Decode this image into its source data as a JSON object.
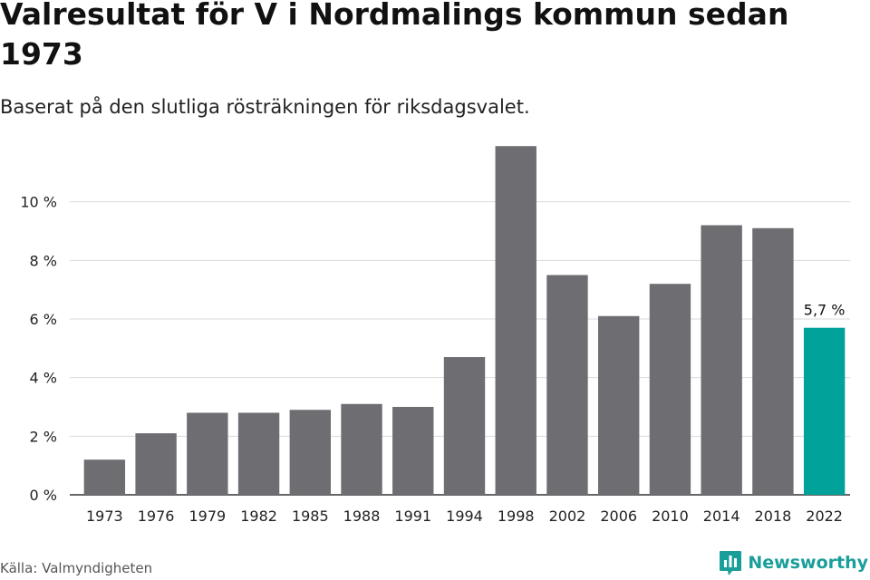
{
  "title": "Valresultat för V i Nordmalings kommun sedan 1973",
  "subtitle": "Baserat på den slutliga rösträkningen för riksdagsvalet.",
  "source": "Källa: Valmyndigheten",
  "brand": {
    "name": "Newsworthy",
    "logo_icon": "bar-chart-logo-icon",
    "color": "#1a9e9a"
  },
  "colors": {
    "bar": "#6e6d72",
    "highlight": "#00a29a",
    "grid": "#d9d9d9",
    "axis": "#333333"
  },
  "chart_data": {
    "type": "bar",
    "categories": [
      "1973",
      "1976",
      "1979",
      "1982",
      "1985",
      "1988",
      "1991",
      "1994",
      "1998",
      "2002",
      "2006",
      "2010",
      "2014",
      "2018",
      "2022"
    ],
    "values": [
      1.2,
      2.1,
      2.8,
      2.8,
      2.9,
      3.1,
      3.0,
      4.7,
      11.9,
      7.5,
      6.1,
      7.2,
      9.2,
      9.1,
      5.7
    ],
    "highlight_index": 14,
    "data_labels": [
      {
        "index": 14,
        "text": "5,7 %"
      }
    ],
    "y_ticks": [
      0,
      2,
      4,
      6,
      8,
      10
    ],
    "y_tick_labels": [
      "0 %",
      "2 %",
      "4 %",
      "6 %",
      "8 %",
      "10 %"
    ],
    "ylim": [
      0,
      12
    ],
    "grid": true,
    "legend": "none"
  }
}
